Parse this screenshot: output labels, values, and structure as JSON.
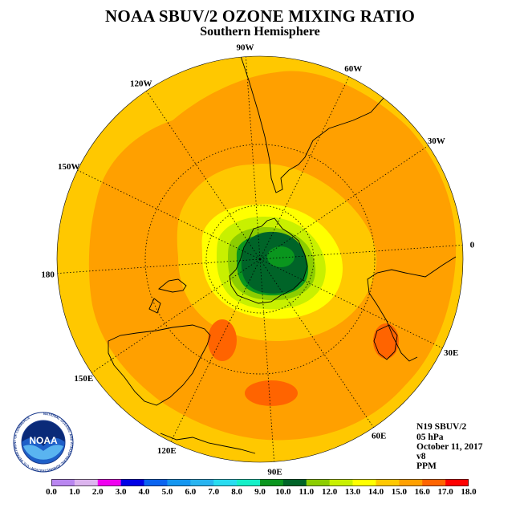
{
  "title": "NOAA SBUV/2 OZONE MIXING RATIO",
  "subtitle": "Southern Hemisphere",
  "info": {
    "satellite": "N19 SBUV/2",
    "level": "05 hPa",
    "date": "October 11, 2017",
    "version": "v8",
    "units": "PPM"
  },
  "logo": {
    "text": "NOAA",
    "ring_text": "NATIONAL OCEANIC AND ATMOSPHERIC ADMINISTRATION · U.S. DEPARTMENT OF COMMERCE"
  },
  "longitude_labels": [
    "0",
    "30E",
    "60E",
    "90E",
    "120E",
    "150E",
    "180",
    "150W",
    "120W",
    "90W",
    "60W",
    "30W"
  ],
  "colorbar": {
    "labels": [
      "0.0",
      "1.0",
      "2.0",
      "3.0",
      "4.0",
      "5.0",
      "6.0",
      "7.0",
      "8.0",
      "9.0",
      "10.0",
      "11.0",
      "12.0",
      "13.0",
      "14.0",
      "15.0",
      "16.0",
      "17.0",
      "18.0"
    ],
    "colors": [
      "#b986f0",
      "#dcb4ee",
      "#f000f0",
      "#0000e6",
      "#0a64f0",
      "#1496f0",
      "#28b4f0",
      "#28dcf0",
      "#14f0c8",
      "#0a961e",
      "#006428",
      "#8ccd00",
      "#c8f000",
      "#ffff00",
      "#ffc800",
      "#ffa000",
      "#ff6400",
      "#ff0000",
      "#8c5a3c"
    ]
  },
  "map": {
    "center_lat": -90,
    "bounding_lat": 0,
    "parallels": [
      -60,
      -30
    ],
    "meridian_spacing": 30,
    "field_colors": {
      "c14": "#ffc800",
      "c15": "#ffa000",
      "c16": "#ff6400",
      "c13": "#ffff00",
      "c12": "#c8f000",
      "c11": "#8ccd00",
      "c10": "#006428",
      "c9": "#0a961e"
    }
  }
}
